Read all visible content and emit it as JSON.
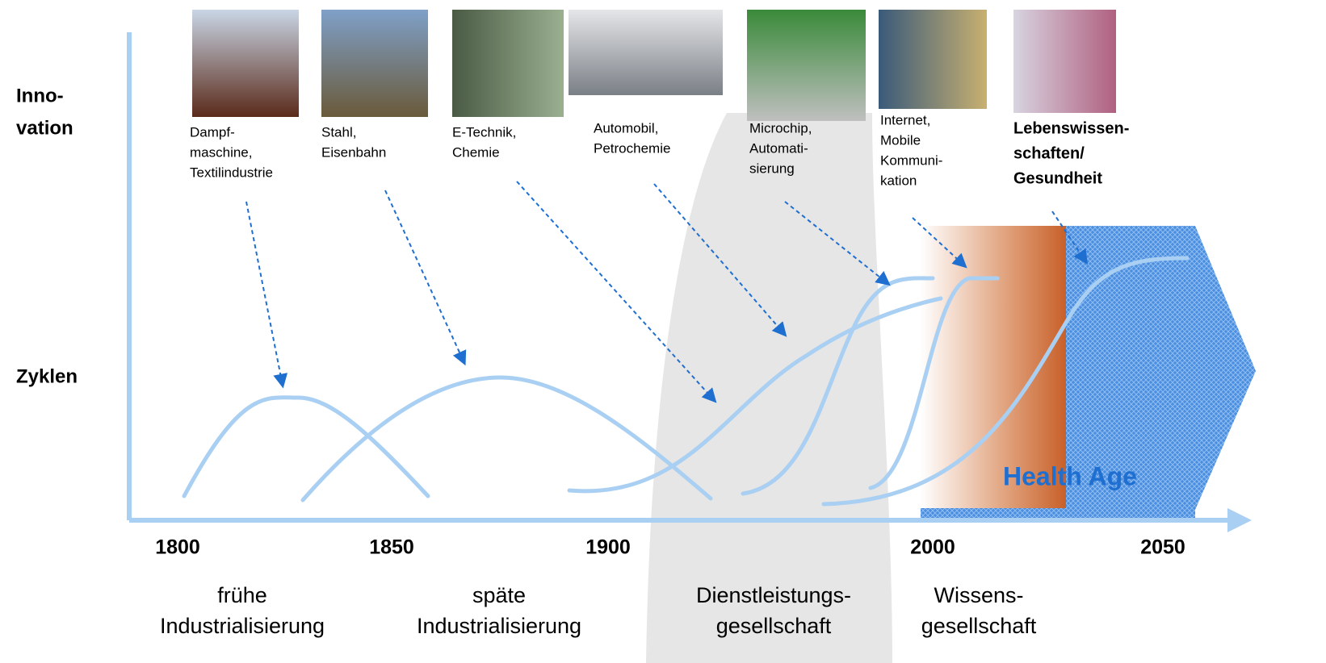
{
  "y_axis": {
    "top": [
      "Inno-",
      "vation"
    ],
    "bottom": "Zyklen"
  },
  "innovations": [
    {
      "lines": [
        "Dampf-",
        "maschine,",
        "Textilindustrie"
      ]
    },
    {
      "lines": [
        "Stahl,",
        "Eisenbahn"
      ]
    },
    {
      "lines": [
        "E-Technik,",
        "Chemie"
      ]
    },
    {
      "lines": [
        "Automobil,",
        "Petrochemie"
      ]
    },
    {
      "lines": [
        "Microchip,",
        "Automati-",
        "sierung"
      ]
    },
    {
      "lines": [
        "Internet,",
        "Mobile",
        "Kommuni-",
        "kation"
      ]
    },
    {
      "lines": [
        "Lebenswissen-",
        "schaften/",
        "Gesundheit"
      ]
    }
  ],
  "years": [
    "1800",
    "1850",
    "1900",
    "2000",
    "2050"
  ],
  "eras": [
    {
      "lines": [
        "frühe",
        "Industrialisierung"
      ]
    },
    {
      "lines": [
        "späte",
        "Industrialisierung"
      ]
    },
    {
      "lines": [
        "Dienstleistungs-",
        "gesellschaft"
      ]
    },
    {
      "lines": [
        "Wissens-",
        "gesellschaft"
      ]
    }
  ],
  "highlight": "Health Age"
}
